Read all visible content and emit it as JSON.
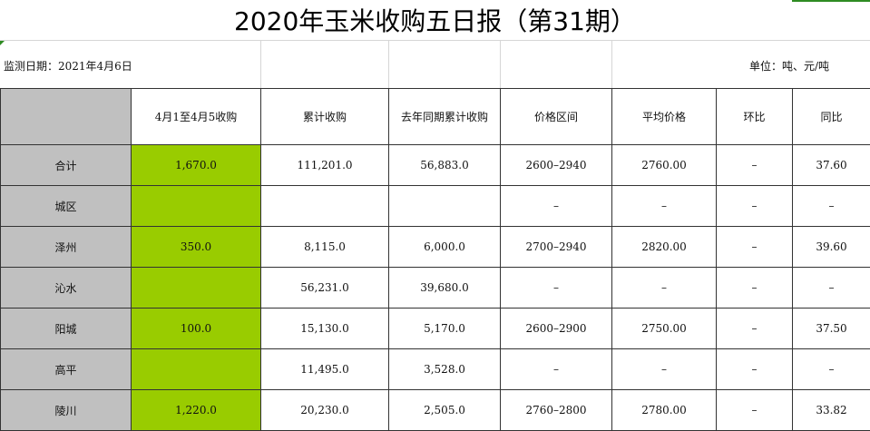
{
  "title": "2020年玉米收购五日报（第31期）",
  "monitor_date": "监测日期：2021年4月6日",
  "unit": "单位：吨、元/吨",
  "table": {
    "headers": [
      "",
      "4月1至4月5收购",
      "累计收购",
      "去年同期累计收购",
      "价格区间",
      "平均价格",
      "环比",
      "同比"
    ],
    "rows": [
      {
        "name": "合计",
        "cells": [
          "1,670.0",
          "111,201.0",
          "56,883.0",
          "2600–2940",
          "2760.00",
          "–",
          "37.60"
        ]
      },
      {
        "name": "城区",
        "cells": [
          "",
          "",
          "",
          "–",
          "–",
          "–",
          "–"
        ]
      },
      {
        "name": "泽州",
        "cells": [
          "350.0",
          "8,115.0",
          "6,000.0",
          "2700–2940",
          "2820.00",
          "–",
          "39.60"
        ]
      },
      {
        "name": "沁水",
        "cells": [
          "",
          "56,231.0",
          "39,680.0",
          "–",
          "–",
          "–",
          "–"
        ]
      },
      {
        "name": "阳城",
        "cells": [
          "100.0",
          "15,130.0",
          "5,170.0",
          "2600–2900",
          "2750.00",
          "–",
          "37.50"
        ]
      },
      {
        "name": "高平",
        "cells": [
          "",
          "11,495.0",
          "3,528.0",
          "–",
          "–",
          "–",
          "–"
        ]
      },
      {
        "name": "陵川",
        "cells": [
          "1,220.0",
          "20,230.0",
          "2,505.0",
          "2760–2800",
          "2780.00",
          "–",
          "33.82"
        ]
      }
    ]
  },
  "colors": {
    "highlight": "#99cc00",
    "header_gray": "#c0c0c0",
    "grid": "#d6d6d6"
  }
}
